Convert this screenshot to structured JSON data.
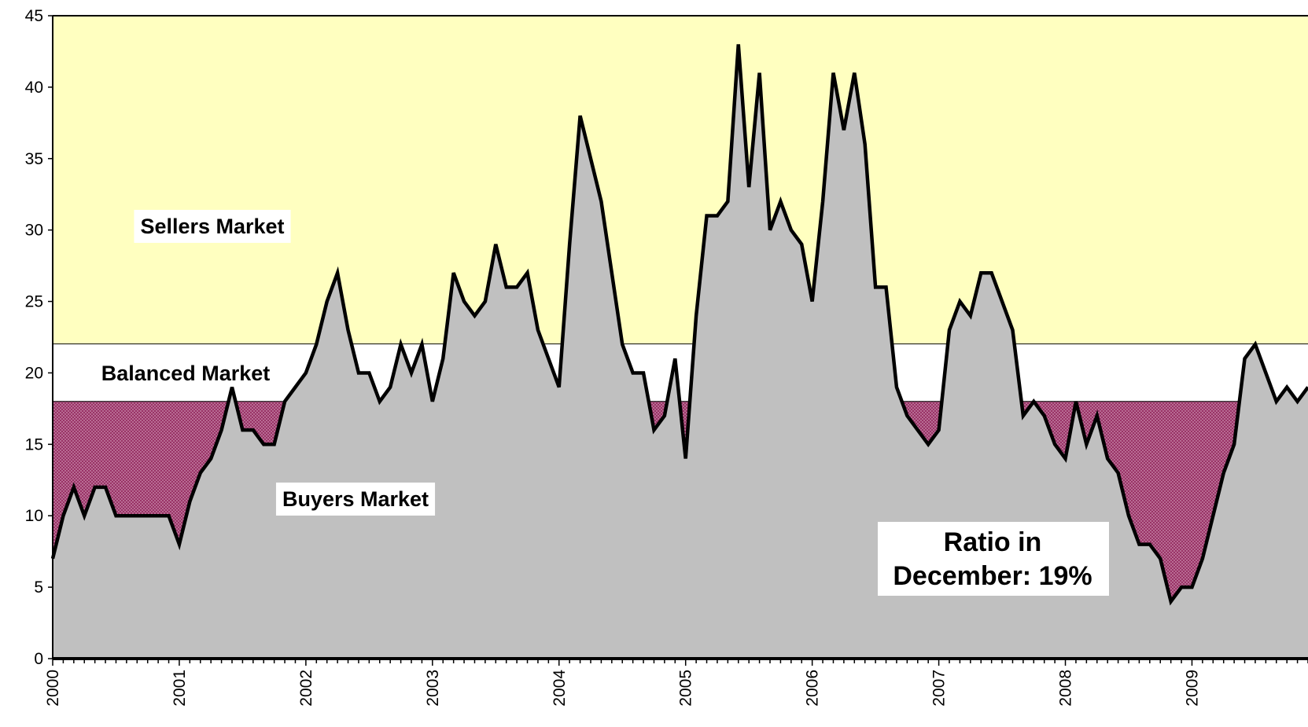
{
  "chart_data": {
    "type": "area",
    "categories": [
      "2000",
      null,
      null,
      null,
      null,
      null,
      null,
      null,
      null,
      null,
      null,
      null,
      "2001",
      null,
      null,
      null,
      null,
      null,
      null,
      null,
      null,
      null,
      null,
      null,
      "2002",
      null,
      null,
      null,
      null,
      null,
      null,
      null,
      null,
      null,
      null,
      null,
      "2003",
      null,
      null,
      null,
      null,
      null,
      null,
      null,
      null,
      null,
      null,
      null,
      "2004",
      null,
      null,
      null,
      null,
      null,
      null,
      null,
      null,
      null,
      null,
      null,
      "2005",
      null,
      null,
      null,
      null,
      null,
      null,
      null,
      null,
      null,
      null,
      null,
      "2006",
      null,
      null,
      null,
      null,
      null,
      null,
      null,
      null,
      null,
      null,
      null,
      "2007",
      null,
      null,
      null,
      null,
      null,
      null,
      null,
      null,
      null,
      null,
      null,
      "2008",
      null,
      null,
      null,
      null,
      null,
      null,
      null,
      null,
      null,
      null,
      null,
      "2009",
      null,
      null,
      null,
      null,
      null,
      null,
      null,
      null,
      null,
      null,
      null
    ],
    "values": [
      7,
      10,
      12,
      10,
      12,
      12,
      10,
      10,
      10,
      10,
      10,
      10,
      8,
      11,
      13,
      14,
      16,
      19,
      16,
      16,
      15,
      15,
      18,
      19,
      20,
      22,
      25,
      27,
      23,
      20,
      20,
      18,
      19,
      22,
      20,
      22,
      18,
      21,
      27,
      25,
      24,
      25,
      29,
      26,
      26,
      27,
      23,
      21,
      19,
      29,
      38,
      35,
      32,
      27,
      22,
      20,
      20,
      16,
      17,
      21,
      14,
      24,
      31,
      31,
      32,
      43,
      33,
      41,
      30,
      32,
      30,
      29,
      25,
      32,
      41,
      37,
      41,
      36,
      26,
      26,
      19,
      17,
      16,
      15,
      16,
      23,
      25,
      24,
      27,
      27,
      25,
      23,
      17,
      18,
      17,
      15,
      14,
      18,
      15,
      17,
      14,
      13,
      10,
      8,
      8,
      7,
      4,
      5,
      5,
      7,
      10,
      13,
      15,
      21,
      22,
      20,
      18,
      19,
      18,
      19
    ],
    "color": "#c0c0c0",
    "line_color": "#000000",
    "ylim": [
      0,
      45
    ],
    "yticks": [
      0,
      5,
      10,
      15,
      20,
      25,
      30,
      35,
      40,
      45
    ],
    "bands": [
      {
        "from": 22,
        "to": 45,
        "label": "Sellers Market",
        "color": "#ffffc0"
      },
      {
        "from": 18,
        "to": 22,
        "label": "Balanced Market",
        "color": "#ffffff"
      },
      {
        "from": 0,
        "to": 18,
        "label": "Buyers Market",
        "color": "#993366"
      }
    ],
    "annotation": [
      "Ratio in",
      "December: 19%"
    ]
  }
}
